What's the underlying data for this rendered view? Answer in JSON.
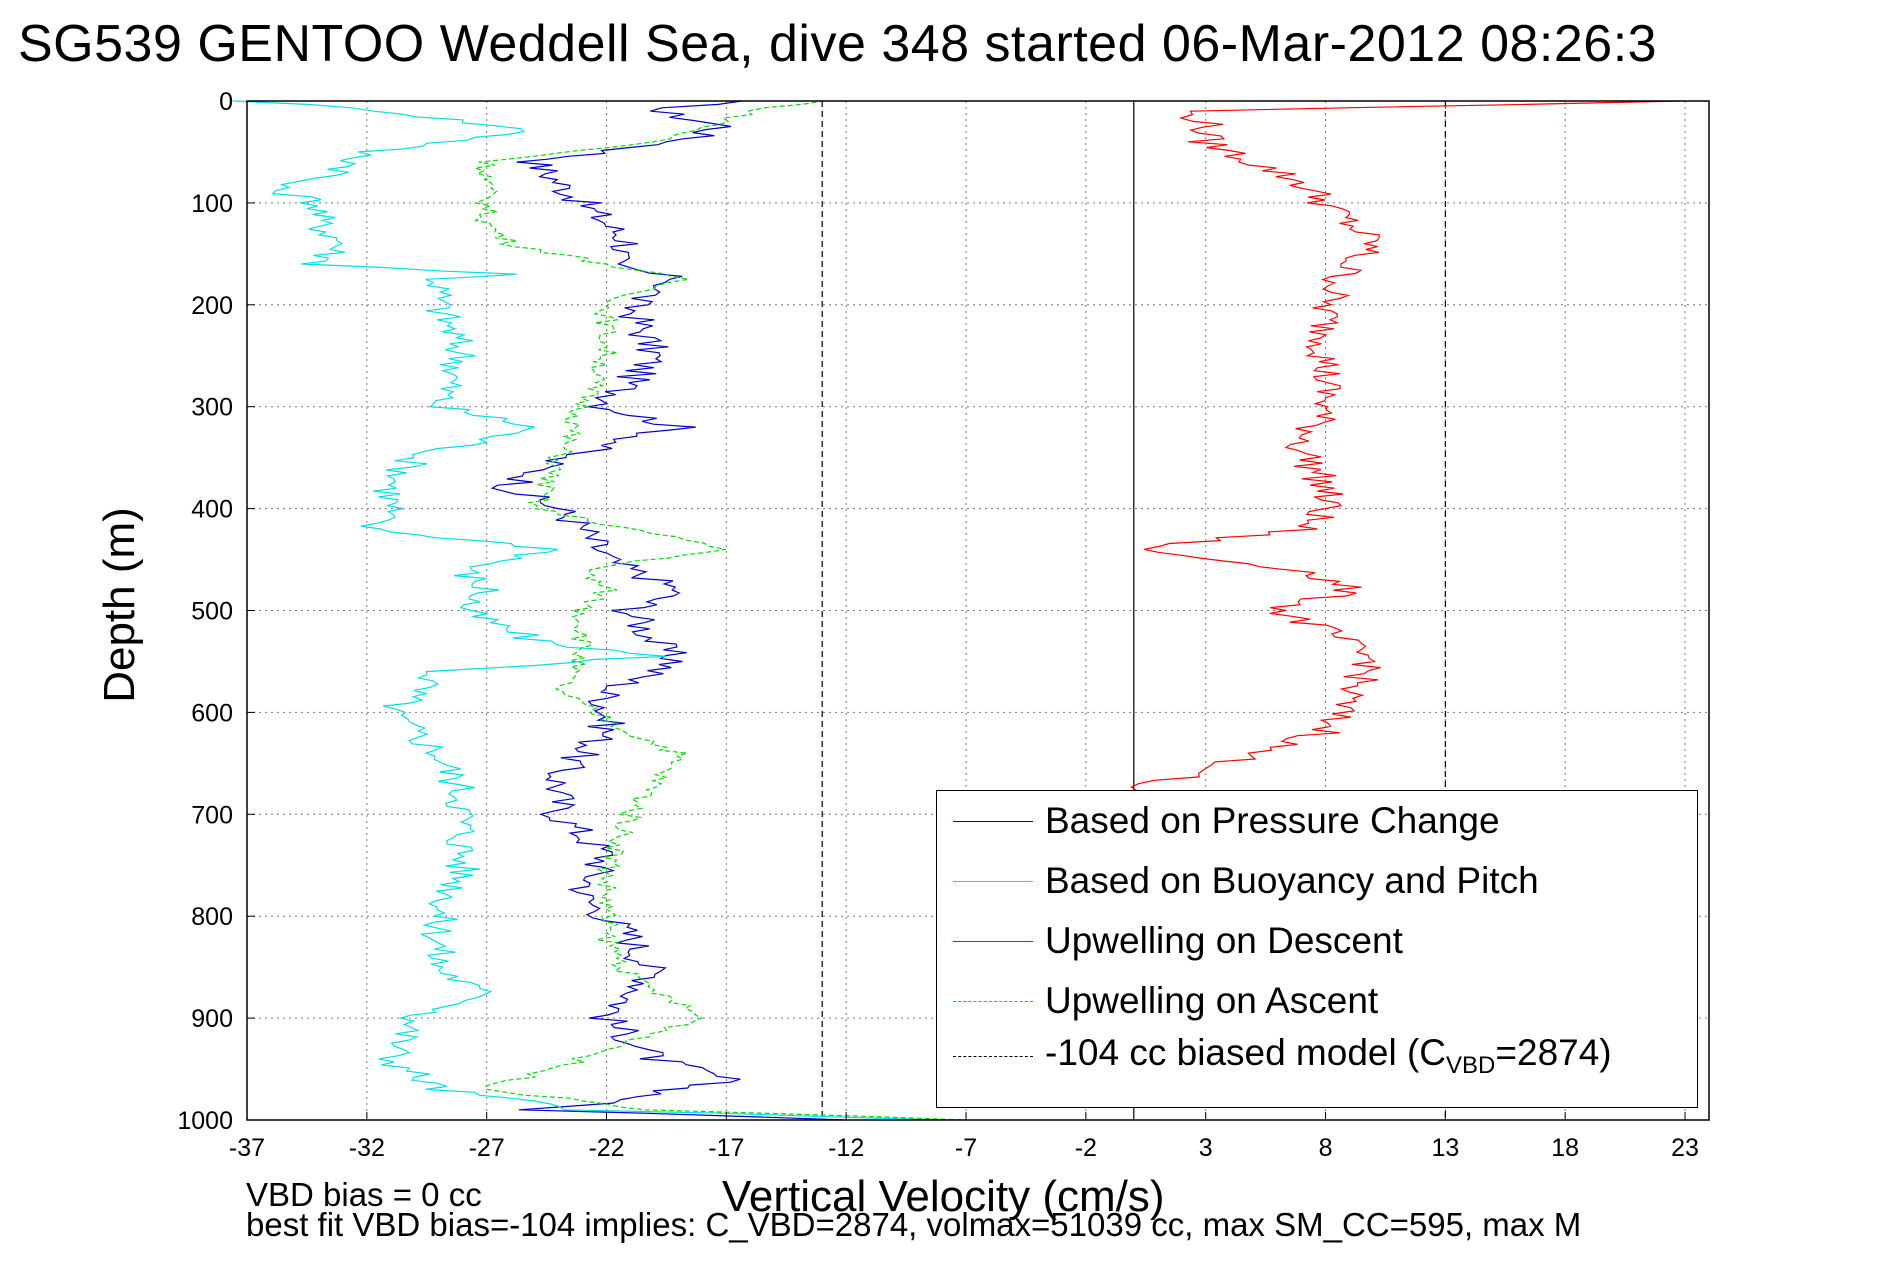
{
  "title": "SG539 GENTOO Weddell Sea, dive 348 started 06-Mar-2012 08:26:3",
  "footer": {
    "line1": "VBD bias = 0 cc",
    "line2": "best fit VBD bias=-104 implies: C_VBD=2874, volmax=51039 cc, max SM_CC=595, max M"
  },
  "chart_data": {
    "type": "line",
    "title": "SG539 GENTOO Weddell Sea, dive 348 started 06-Mar-2012 08:26:3",
    "xlabel": "Vertical Velocity (cm/s)",
    "ylabel": "Depth (m)",
    "xlim": [
      -37,
      24
    ],
    "ylim": [
      0,
      1000
    ],
    "y_reversed": true,
    "grid": true,
    "legend_position": "bottom-right",
    "xticks": [
      -37,
      -32,
      -27,
      -22,
      -17,
      -12,
      -7,
      -2,
      3,
      8,
      13,
      18,
      23
    ],
    "yticks": [
      0,
      100,
      200,
      300,
      400,
      500,
      600,
      700,
      800,
      900,
      1000
    ],
    "colors": {
      "pressure": "#0000cc",
      "buoyancy": "#00e0e8",
      "descent": "#ff0000",
      "ascent": "#00dd00",
      "model": "#000000"
    },
    "series": [
      {
        "name": "Based on Pressure Change",
        "color": "#0000cc",
        "style": "solid",
        "depth": [
          0,
          10,
          25,
          40,
          60,
          80,
          100,
          120,
          140,
          160,
          175,
          200,
          250,
          300,
          320,
          350,
          380,
          400,
          420,
          450,
          480,
          500,
          530,
          550,
          580,
          620,
          660,
          700,
          740,
          780,
          820,
          860,
          900,
          940,
          960,
          980,
          990,
          1000
        ],
        "velocity": [
          -17,
          -20,
          -17,
          -19,
          -25,
          -24,
          -23,
          -22,
          -21,
          -22,
          -19,
          -21,
          -20,
          -22,
          -19,
          -24,
          -26,
          -24,
          -23,
          -22,
          -19,
          -21,
          -20,
          -19,
          -22,
          -22,
          -24,
          -24,
          -22,
          -23,
          -21,
          -20,
          -22,
          -20,
          -17,
          -21,
          -25,
          -12
        ]
      },
      {
        "name": "Based on Buoyancy and Pitch",
        "color": "#00e0e8",
        "style": "solid",
        "depth": [
          0,
          10,
          30,
          50,
          70,
          85,
          100,
          120,
          140,
          160,
          170,
          175,
          200,
          250,
          300,
          320,
          350,
          380,
          400,
          420,
          440,
          460,
          480,
          500,
          530,
          545,
          560,
          600,
          640,
          680,
          720,
          760,
          800,
          850,
          880,
          900,
          940,
          970,
          990,
          1000
        ],
        "velocity": [
          -37,
          -31,
          -25,
          -32,
          -33,
          -36,
          -34,
          -34,
          -33,
          -34,
          -26,
          -29,
          -29,
          -28,
          -29,
          -25,
          -30,
          -31,
          -31,
          -32,
          -24,
          -28,
          -27,
          -28,
          -25,
          -20,
          -29,
          -31,
          -29,
          -28,
          -28,
          -28,
          -29,
          -29,
          -27,
          -30,
          -31,
          -29,
          -23,
          -8
        ]
      },
      {
        "name": "Upwelling on Descent",
        "color": "#ff0000",
        "style": "solid",
        "depth": [
          0,
          10,
          20,
          40,
          60,
          80,
          100,
          120,
          140,
          160,
          200,
          250,
          300,
          340,
          380,
          400,
          420,
          440,
          460,
          480,
          500,
          520,
          550,
          580,
          620,
          640,
          660,
          670,
          680
        ],
        "velocity": [
          23,
          2,
          3,
          3,
          5,
          7,
          8,
          9,
          10,
          9,
          8,
          8,
          8,
          7,
          8,
          8,
          7,
          0,
          7,
          9,
          6,
          8,
          10,
          9,
          8,
          5,
          3,
          0,
          -1
        ]
      },
      {
        "name": "Upwelling on Ascent",
        "color": "#00dd00",
        "style": "dashed",
        "depth": [
          0,
          10,
          20,
          40,
          60,
          80,
          100,
          120,
          140,
          160,
          175,
          200,
          250,
          300,
          350,
          400,
          440,
          460,
          480,
          500,
          540,
          580,
          620,
          640,
          700,
          760,
          820,
          860,
          900,
          940,
          970,
          990,
          1000
        ],
        "velocity": [
          -13,
          -16,
          -17,
          -20,
          -27,
          -27,
          -27,
          -27,
          -26,
          -22,
          -19,
          -22,
          -22,
          -23,
          -24,
          -25,
          -17,
          -23,
          -22,
          -23,
          -23,
          -24,
          -21,
          -19,
          -21,
          -22,
          -22,
          -21,
          -18,
          -23,
          -27,
          -20,
          -7
        ]
      }
    ],
    "annotations": {
      "model_label": "-104 cc biased model (C",
      "model_sub": "VBD",
      "model_suffix": "=2874)"
    }
  },
  "legend": {
    "items": [
      {
        "label": "Based on Pressure Change"
      },
      {
        "label": "Based on Buoyancy and Pitch"
      },
      {
        "label": "Upwelling on Descent"
      },
      {
        "label": "Upwelling on Ascent"
      }
    ]
  }
}
